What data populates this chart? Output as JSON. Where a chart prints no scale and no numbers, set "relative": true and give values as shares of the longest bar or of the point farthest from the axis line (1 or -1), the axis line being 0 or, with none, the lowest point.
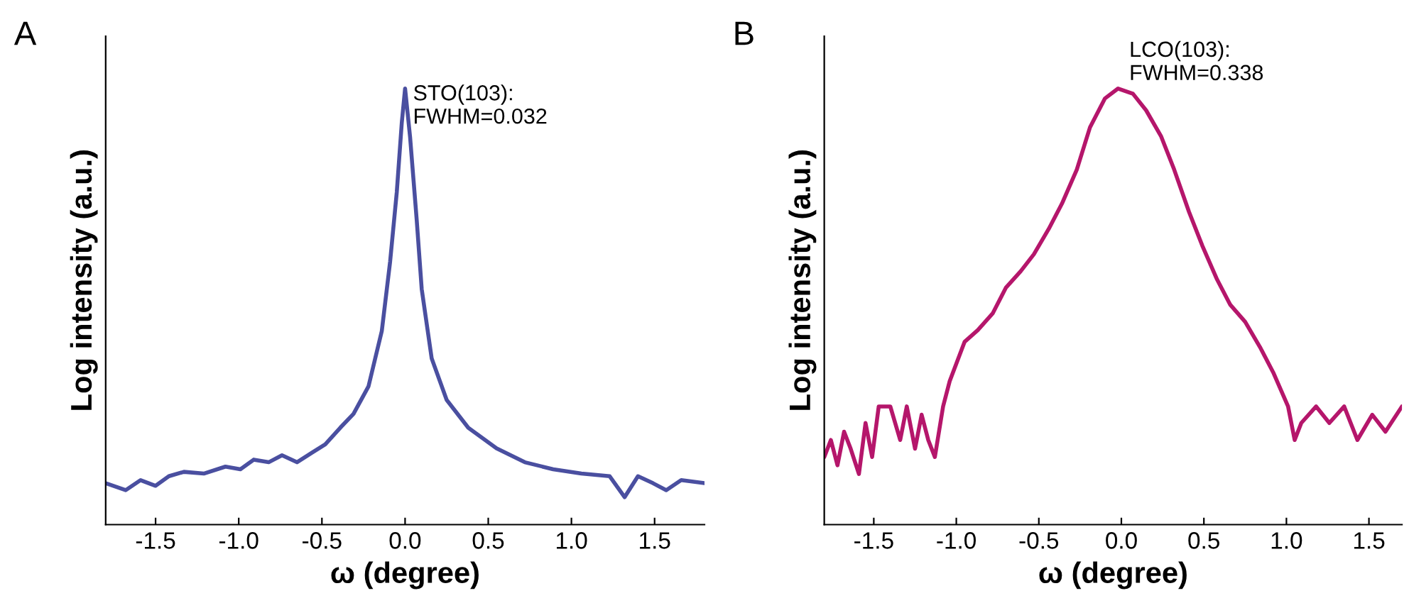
{
  "chart_data": [
    {
      "type": "line",
      "title": "A",
      "xlabel": "ω (degree)",
      "ylabel": "Log intensity (a.u.)",
      "relative": true,
      "tick_labels": "x",
      "xlim": [
        -1.8,
        1.8
      ],
      "xticks": [
        {
          "value": -1.5,
          "label": "-1.5"
        },
        {
          "value": -1.0,
          "label": "-1.0"
        },
        {
          "value": -0.5,
          "label": "-0.5"
        },
        {
          "value": 0.0,
          "label": "0.0"
        },
        {
          "value": 0.5,
          "label": "0.5"
        },
        {
          "value": 1.0,
          "label": "1.0"
        },
        {
          "value": 1.5,
          "label": "1.5"
        }
      ],
      "annotations": [
        {
          "text": "STO(103):\nFWHM=0.032",
          "x": 0,
          "y": 1
        }
      ],
      "series": [
        {
          "color": "#4a4fa0",
          "x": [
            -1.8,
            -1.68,
            -1.59,
            -1.5,
            -1.42,
            -1.33,
            -1.21,
            -1.08,
            -0.99,
            -0.91,
            -0.82,
            -0.74,
            -0.65,
            -0.56,
            -0.48,
            -0.39,
            -0.31,
            -0.22,
            -0.14,
            -0.09,
            -0.05,
            -0.02,
            0,
            0.03,
            0.07,
            0.1,
            0.16,
            0.25,
            0.38,
            0.55,
            0.72,
            0.89,
            1.06,
            1.23,
            1.32,
            1.4,
            1.49,
            1.57,
            1.66,
            1.8
          ],
          "values": [
            0.095,
            0.079,
            0.102,
            0.089,
            0.111,
            0.121,
            0.117,
            0.133,
            0.127,
            0.149,
            0.143,
            0.159,
            0.143,
            0.165,
            0.184,
            0.222,
            0.254,
            0.317,
            0.444,
            0.603,
            0.762,
            0.921,
            1,
            0.889,
            0.698,
            0.54,
            0.381,
            0.286,
            0.222,
            0.175,
            0.143,
            0.127,
            0.117,
            0.111,
            0.063,
            0.111,
            0.095,
            0.079,
            0.102,
            0.095
          ]
        }
      ]
    },
    {
      "type": "line",
      "title": "B",
      "xlabel": "ω (degree)",
      "ylabel": "Log intensity (a.u.)",
      "relative": true,
      "tick_labels": "x",
      "xlim": [
        -1.8,
        1.7
      ],
      "xticks": [
        {
          "value": -1.5,
          "label": "-1.5"
        },
        {
          "value": -1.0,
          "label": "-1.0"
        },
        {
          "value": -0.5,
          "label": "-0.5"
        },
        {
          "value": 0.0,
          "label": "0.0"
        },
        {
          "value": 0.5,
          "label": "0.5"
        },
        {
          "value": 1.0,
          "label": "1.0"
        },
        {
          "value": 1.5,
          "label": "1.5"
        }
      ],
      "annotations": [
        {
          "text": "LCO(103):\nFWHM=0.338",
          "x": 0,
          "y": 1
        }
      ],
      "series": [
        {
          "color": "#b5166b",
          "x": [
            -1.8,
            -1.76,
            -1.72,
            -1.68,
            -1.64,
            -1.59,
            -1.55,
            -1.51,
            -1.47,
            -1.4,
            -1.34,
            -1.3,
            -1.25,
            -1.21,
            -1.17,
            -1.13,
            -1.08,
            -1.04,
            -0.95,
            -0.87,
            -0.78,
            -0.7,
            -0.61,
            -0.53,
            -0.44,
            -0.36,
            -0.27,
            -0.19,
            -0.1,
            -0.02,
            0.07,
            0.15,
            0.24,
            0.32,
            0.41,
            0.49,
            0.58,
            0.66,
            0.75,
            0.84,
            0.92,
            1.01,
            1.05,
            1.09,
            1.18,
            1.26,
            1.35,
            1.43,
            1.52,
            1.6,
            1.7
          ],
          "values": [
            0.155,
            0.194,
            0.136,
            0.213,
            0.174,
            0.116,
            0.233,
            0.155,
            0.271,
            0.271,
            0.194,
            0.271,
            0.174,
            0.252,
            0.194,
            0.155,
            0.271,
            0.329,
            0.419,
            0.446,
            0.484,
            0.543,
            0.581,
            0.62,
            0.678,
            0.736,
            0.814,
            0.911,
            0.977,
            1,
            0.988,
            0.95,
            0.891,
            0.814,
            0.717,
            0.64,
            0.562,
            0.504,
            0.465,
            0.407,
            0.349,
            0.271,
            0.194,
            0.233,
            0.271,
            0.233,
            0.271,
            0.194,
            0.252,
            0.213,
            0.271
          ]
        }
      ]
    }
  ]
}
